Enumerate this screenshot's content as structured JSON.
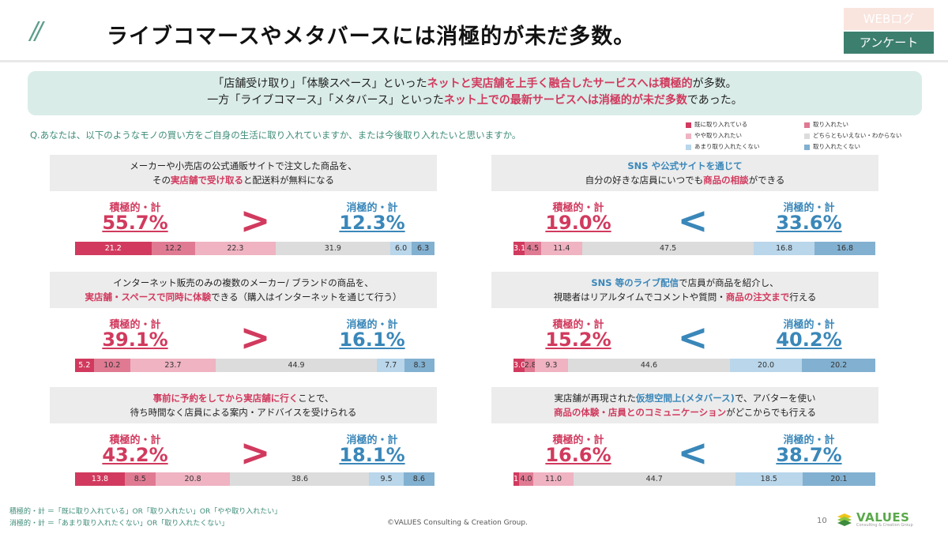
{
  "header": {
    "slash": "//",
    "title": "ライブコマースやメタバースには消極的が未だ多数。",
    "tag_top": "WEBログ",
    "tag_bottom": "アンケート"
  },
  "summary": {
    "line1": [
      {
        "text": "「店舗受け取り」「体験スペース」といった",
        "em": false
      },
      {
        "text": "ネットと実店舗を上手く融合したサービスへは積極的",
        "em": true
      },
      {
        "text": "が多数。",
        "em": false
      }
    ],
    "line2": [
      {
        "text": "一方「ライブコマース」「メタバース」といった",
        "em": false
      },
      {
        "text": "ネット上での最新サービスへは消極的が未だ多数",
        "em": true
      },
      {
        "text": "であった。",
        "em": false
      }
    ]
  },
  "question": "Q.あなたは、以下のようなモノの買い方をご自身の生活に取り入れていますか、または今後取り入れたいと思いますか。",
  "colors": {
    "c1": "#d13a5e",
    "c2": "#e07a93",
    "c3": "#efb3c2",
    "c4": "#dcdcdc",
    "c5": "#b9d6ea",
    "c6": "#82b0d0",
    "pos": "#d13a5e",
    "neg": "#3a87b9"
  },
  "legend": [
    "既に取り入れている",
    "取り入れたい",
    "やや取り入れたい",
    "どちらともいえない・わからない",
    "あまり取り入れたくない",
    "取り入れたくない"
  ],
  "labels": {
    "positive": "積極的・計",
    "negative": "消極的・計"
  },
  "chart_data": {
    "type": "bar",
    "stacked": true,
    "orientation": "horizontal",
    "series_names": [
      "既に取り入れている",
      "取り入れたい",
      "やや取り入れたい",
      "どちらともいえない・わからない",
      "あまり取り入れたくない",
      "取り入れたくない"
    ],
    "items": [
      {
        "q_lines": [
          [
            {
              "text": "メーカーや小売店の公式通販サイトで注文した商品を、",
              "em": false
            }
          ],
          [
            {
              "text": "その",
              "em": false
            },
            {
              "text": "実店舗で受け取る",
              "em": true
            },
            {
              "text": "と配送料が無料になる",
              "em": false
            }
          ]
        ],
        "positive_total": "55.7%",
        "negative_total": "12.3%",
        "comparison": ">",
        "values": [
          21.2,
          12.2,
          22.3,
          31.9,
          6.0,
          6.3
        ]
      },
      {
        "q_lines": [
          [
            {
              "text": "SNS や公式サイトを通じて",
              "em": "blue"
            }
          ],
          [
            {
              "text": "自分の好きな店員にいつでも",
              "em": false
            },
            {
              "text": "商品の相談",
              "em": true
            },
            {
              "text": "ができる",
              "em": false
            }
          ]
        ],
        "positive_total": "19.0%",
        "negative_total": "33.6%",
        "comparison": "<",
        "values": [
          3.1,
          4.5,
          11.4,
          47.5,
          16.8,
          16.8
        ]
      },
      {
        "q_lines": [
          [
            {
              "text": "インターネット販売のみの複数のメーカー/ ブランドの商品を、",
              "em": false
            }
          ],
          [
            {
              "text": "実店舗・スペースで同時に体験",
              "em": true
            },
            {
              "text": "できる（購入はインターネットを通じて行う）",
              "em": false
            }
          ]
        ],
        "positive_total": "39.1%",
        "negative_total": "16.1%",
        "comparison": ">",
        "values": [
          5.2,
          10.2,
          23.7,
          44.9,
          7.7,
          8.3
        ]
      },
      {
        "q_lines": [
          [
            {
              "text": "SNS 等のライブ配信",
              "em": "blue"
            },
            {
              "text": "で店員が商品を紹介し、",
              "em": false
            }
          ],
          [
            {
              "text": "視聴者はリアルタイムでコメントや質問・",
              "em": false
            },
            {
              "text": "商品の注文まで",
              "em": true
            },
            {
              "text": "行える",
              "em": false
            }
          ]
        ],
        "positive_total": "15.2%",
        "negative_total": "40.2%",
        "comparison": "<",
        "values": [
          3.0,
          2.8,
          9.3,
          44.6,
          20.0,
          20.2
        ]
      },
      {
        "q_lines": [
          [
            {
              "text": "事前に予約をしてから実店舗に行く",
              "em": true
            },
            {
              "text": "ことで、",
              "em": false
            }
          ],
          [
            {
              "text": "待ち時間なく店員による案内・アドバイスを受けられる",
              "em": false
            }
          ]
        ],
        "positive_total": "43.2%",
        "negative_total": "18.1%",
        "comparison": ">",
        "values": [
          13.8,
          8.5,
          20.8,
          38.6,
          9.5,
          8.6
        ]
      },
      {
        "q_lines": [
          [
            {
              "text": "実店舗が再現された",
              "em": false
            },
            {
              "text": "仮想空間上(メタバース)",
              "em": "blue"
            },
            {
              "text": "で、アバターを使い",
              "em": false
            }
          ],
          [
            {
              "text": "商品の体験・店員とのコミュニケーション",
              "em": true
            },
            {
              "text": "がどこからでも行える",
              "em": false
            }
          ]
        ],
        "positive_total": "16.6%",
        "negative_total": "38.7%",
        "comparison": "<",
        "values": [
          1.5,
          4.0,
          11.0,
          44.7,
          18.5,
          20.1
        ]
      }
    ]
  },
  "footer": {
    "note1": "積極的・計 ＝「既に取り入れている」OR「取り入れたい」OR「やや取り入れたい」",
    "note2": "消極的・計 ＝「あまり取り入れたくない」OR「取り入れたくない」",
    "copyright": "©VALUES Consulting & Creation Group.",
    "page": "10",
    "logo_text": "VALUES",
    "logo_sub": "Consulting & Creation Group"
  }
}
